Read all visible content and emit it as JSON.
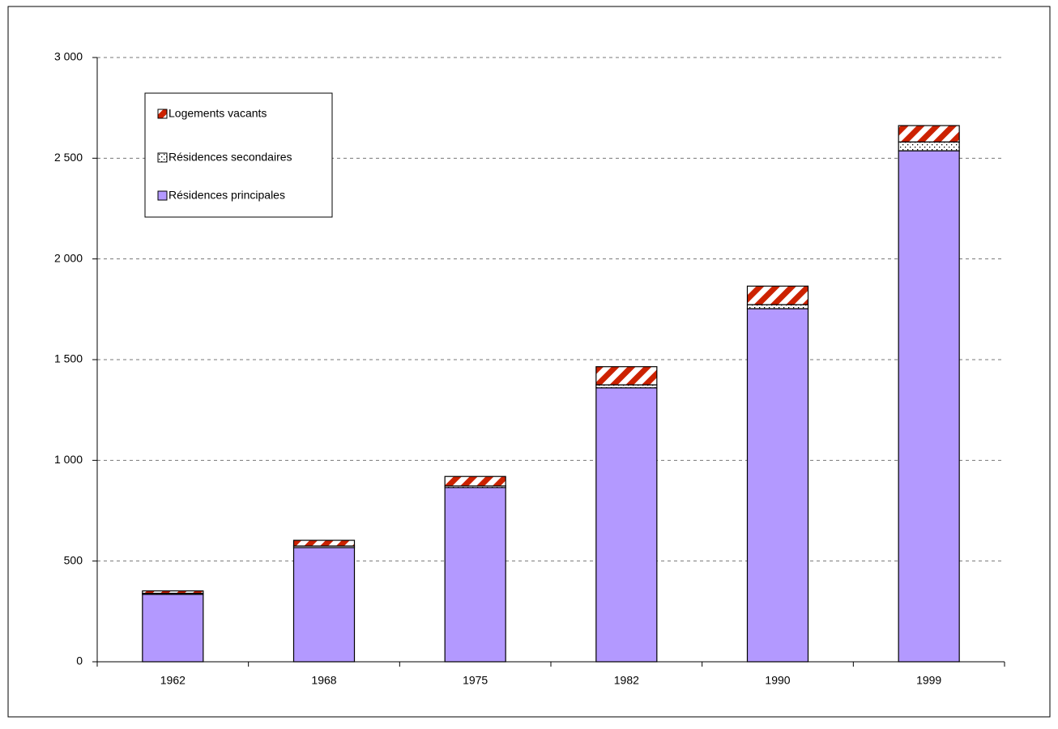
{
  "chart_data": {
    "type": "stacked-bar",
    "categories": [
      "1962",
      "1968",
      "1975",
      "1982",
      "1990",
      "1999"
    ],
    "series": [
      {
        "name": "Résidences principales",
        "color": "#b399ff",
        "pattern": "solid",
        "values": [
          335,
          567,
          865,
          1360,
          1753,
          2537
        ]
      },
      {
        "name": "Résidences secondaires",
        "color": "#000000",
        "pattern": "dots",
        "values": [
          5,
          8,
          8,
          15,
          20,
          44
        ]
      },
      {
        "name": "Logements vacants",
        "color": "#cc2200",
        "pattern": "hatch",
        "values": [
          12,
          28,
          47,
          90,
          92,
          81
        ]
      }
    ],
    "ylim": [
      0,
      3000
    ],
    "yticks": [
      0,
      500,
      {
        "value": 1000,
        "label": "1 000"
      },
      {
        "value": 1500,
        "label": "1 500"
      },
      {
        "value": 2000,
        "label": "2 000"
      },
      {
        "value": 2500,
        "label": "2 500"
      },
      {
        "value": 3000,
        "label": "3 000"
      }
    ],
    "grid": true,
    "legend": "top-left"
  }
}
